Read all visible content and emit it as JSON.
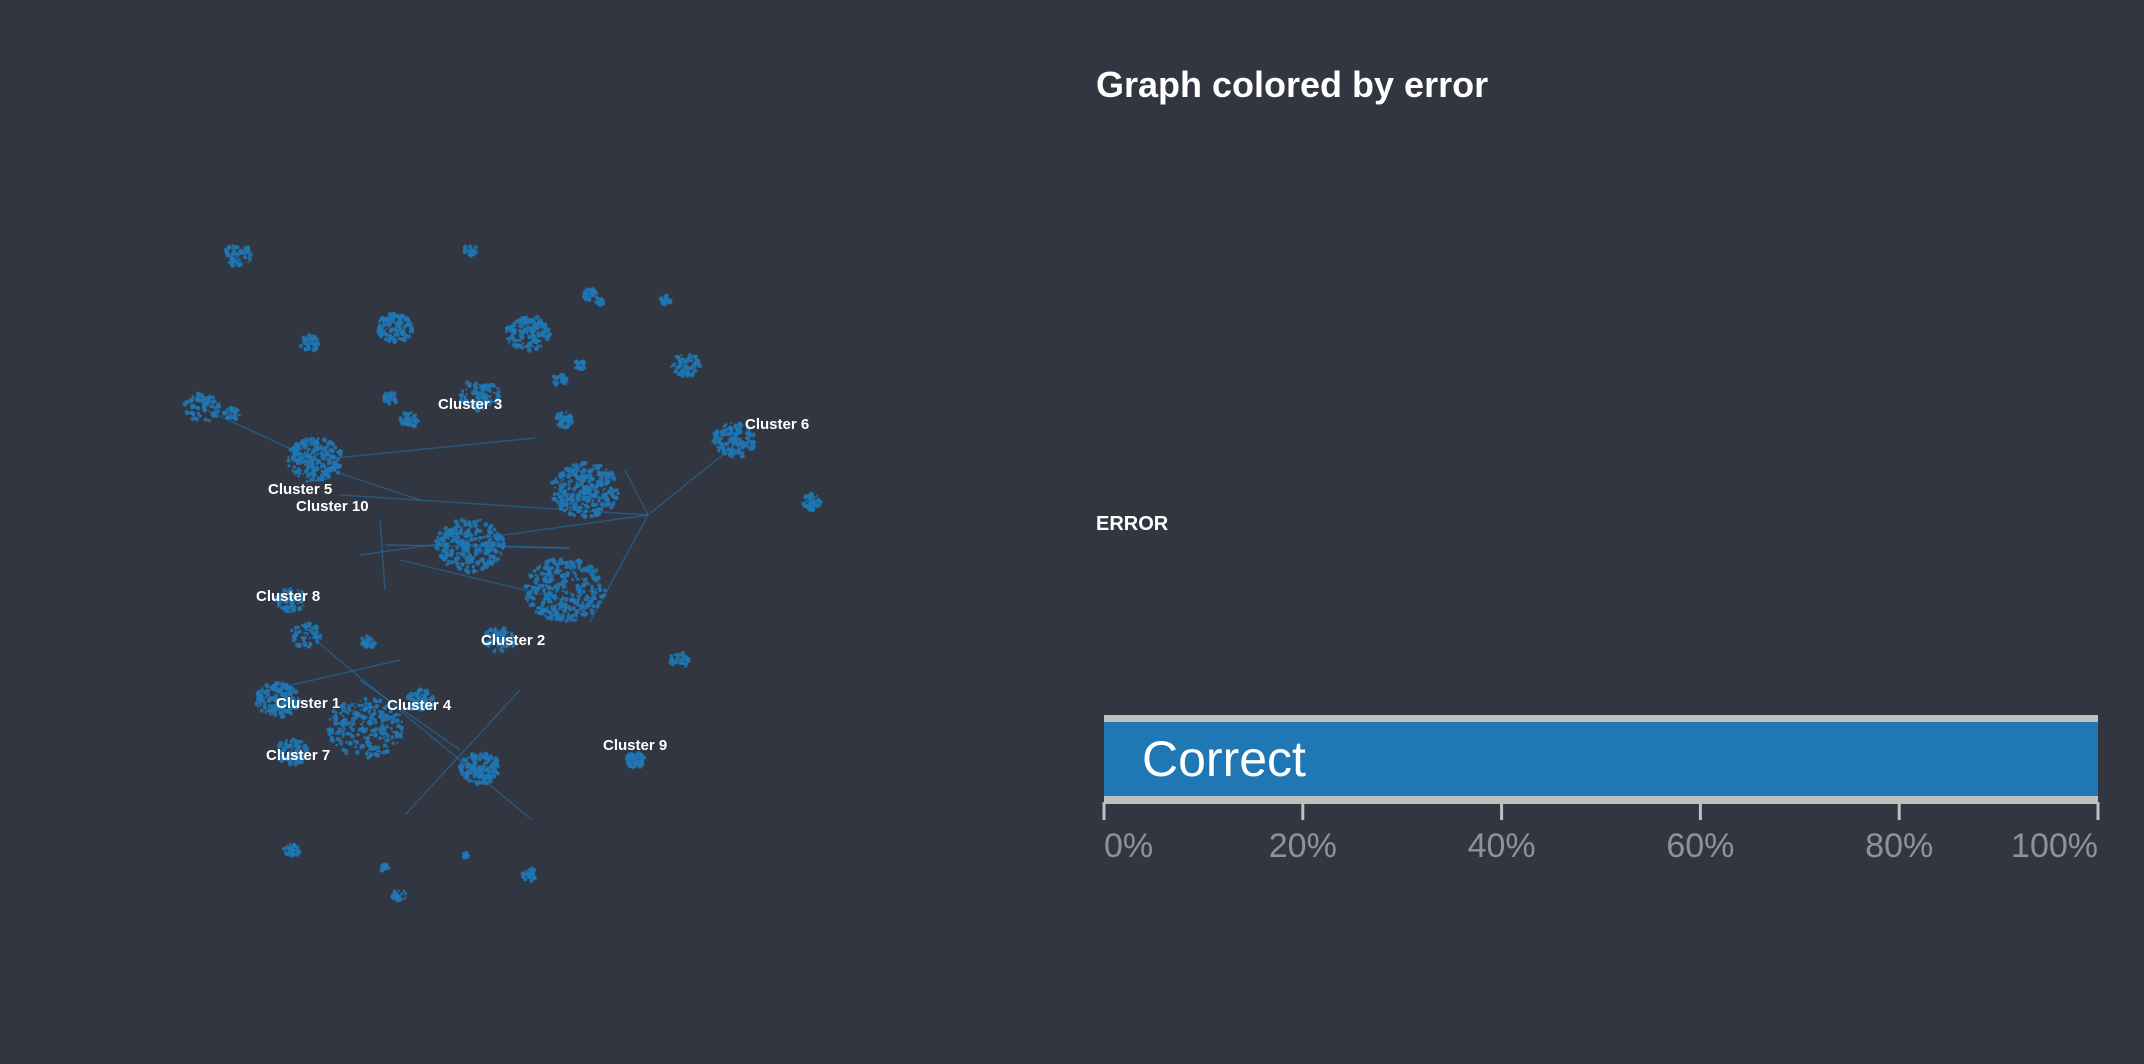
{
  "title": "Graph colored by error",
  "metric_label": "ERROR",
  "colors": {
    "background": "#323641",
    "node": "#1f77b4",
    "bar_fill": "#1f77b4",
    "bar_track": "#bfbfbf",
    "axis": "#bfbfbf",
    "tick_text": "#8e929c",
    "text": "#ffffff"
  },
  "clusters": [
    {
      "label": "Cluster 3"
    },
    {
      "label": "Cluster 6"
    },
    {
      "label": "Cluster 5"
    },
    {
      "label": "Cluster 10"
    },
    {
      "label": "Cluster 8"
    },
    {
      "label": "Cluster 2"
    },
    {
      "label": "Cluster 1"
    },
    {
      "label": "Cluster 4"
    },
    {
      "label": "Cluster 9"
    },
    {
      "label": "Cluster 7"
    }
  ],
  "chart_data": {
    "type": "bar",
    "orientation": "horizontal",
    "stacked": true,
    "categories": [
      "Correct"
    ],
    "values": [
      100
    ],
    "xlim": [
      0,
      100
    ],
    "ticks": [
      "0%",
      "20%",
      "40%",
      "60%",
      "80%",
      "100%"
    ],
    "tick_values": [
      0,
      20,
      40,
      60,
      80,
      100
    ]
  }
}
